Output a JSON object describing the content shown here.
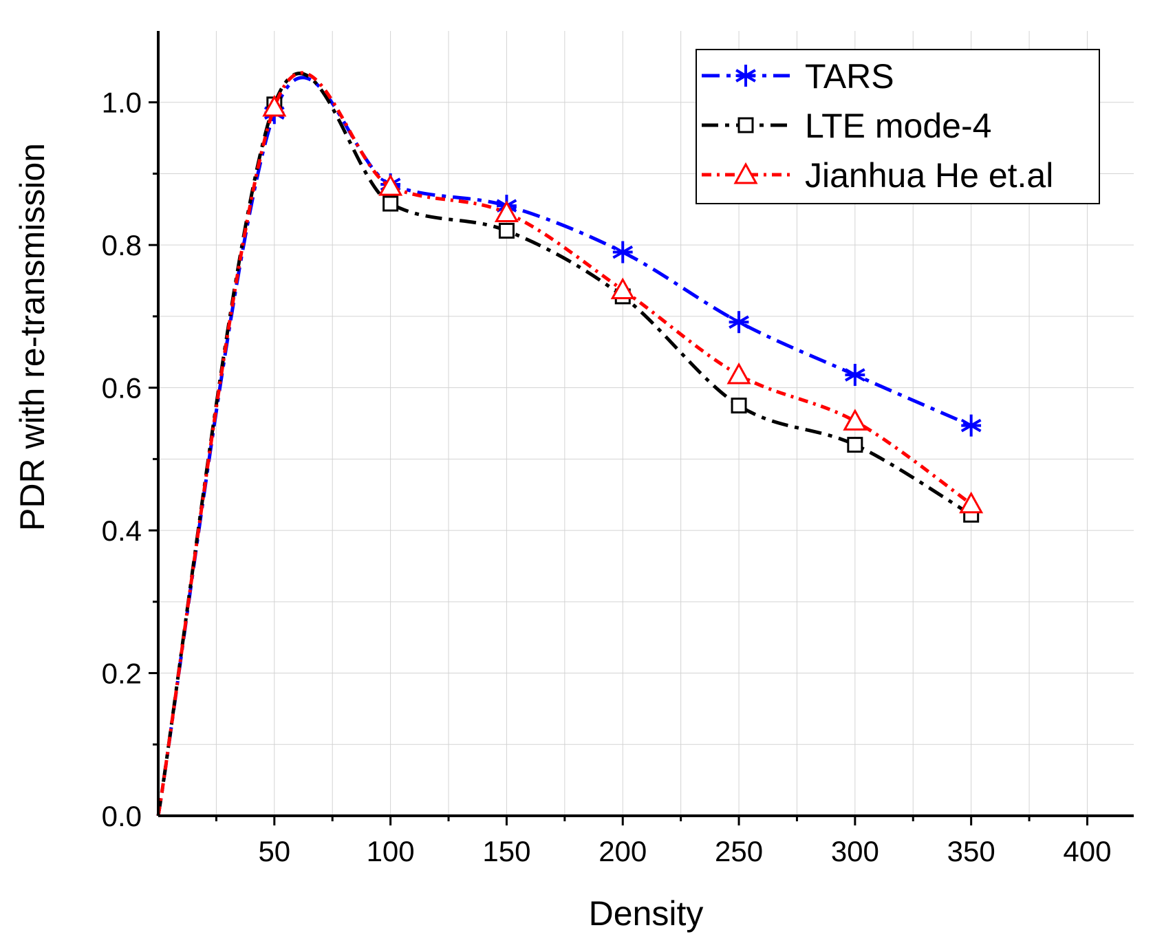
{
  "chart_data": {
    "type": "line",
    "title": "",
    "xlabel": "Density",
    "ylabel": "PDR with re-transmission",
    "xlim": [
      0,
      420
    ],
    "ylim": [
      0,
      1.1
    ],
    "xticks": [
      50,
      100,
      150,
      200,
      250,
      300,
      350,
      400
    ],
    "xtick_labels": [
      "50",
      "100",
      "150",
      "200",
      "250",
      "300",
      "350",
      "400"
    ],
    "yticks": [
      0.0,
      0.2,
      0.4,
      0.6,
      0.8,
      1.0
    ],
    "ytick_labels": [
      "0.0",
      "0.2",
      "0.4",
      "0.6",
      "0.8",
      "1.0"
    ],
    "grid": true,
    "legend_position": "top-right",
    "series": [
      {
        "name": "TARS",
        "color": "#0000ff",
        "marker": "asterisk",
        "x": [
          0,
          50,
          100,
          150,
          200,
          250,
          300,
          350
        ],
        "y": [
          0.0,
          0.985,
          0.885,
          0.855,
          0.79,
          0.692,
          0.618,
          0.547
        ]
      },
      {
        "name": "LTE mode-4",
        "color": "#000000",
        "marker": "square",
        "x": [
          0,
          50,
          100,
          150,
          200,
          250,
          300,
          350
        ],
        "y": [
          0.0,
          0.997,
          0.858,
          0.82,
          0.728,
          0.575,
          0.52,
          0.422
        ]
      },
      {
        "name": "Jianhua He et.al",
        "color": "#ff0000",
        "marker": "triangle",
        "x": [
          0,
          50,
          100,
          150,
          200,
          250,
          300,
          350
        ],
        "y": [
          0.0,
          0.993,
          0.882,
          0.845,
          0.737,
          0.618,
          0.553,
          0.437
        ]
      }
    ]
  }
}
